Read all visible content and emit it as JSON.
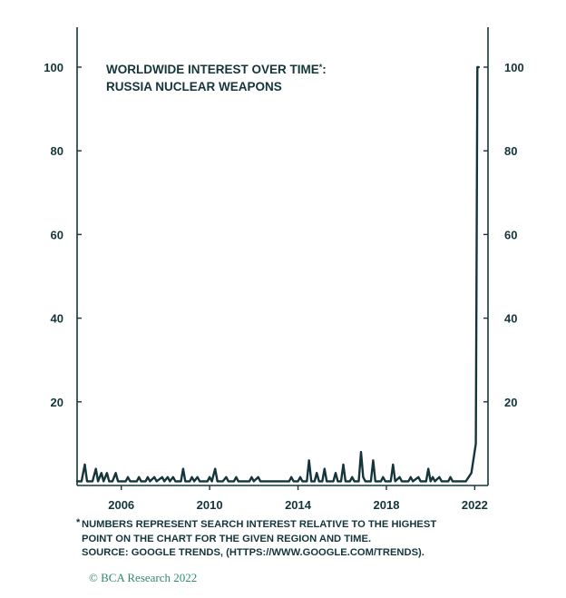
{
  "chart_data": {
    "type": "line",
    "title_lines": [
      "WORLDWIDE INTEREST OVER TIME",
      "RUSSIA NUCLEAR WEAPONS"
    ],
    "title_marker": "*:",
    "title_line1_suffix": ":",
    "xlabel": "",
    "ylabel": "",
    "xlim": [
      2004.0,
      2022.6
    ],
    "ylim": [
      0,
      110
    ],
    "x_ticks": [
      2006,
      2010,
      2014,
      2018,
      2022
    ],
    "x_tick_labels": [
      "2006",
      "2010",
      "2014",
      "2018",
      "2022"
    ],
    "y_ticks": [
      20,
      40,
      60,
      80,
      100
    ],
    "y_tick_labels": [
      "20",
      "40",
      "60",
      "80",
      "100"
    ],
    "grid": false,
    "series": [
      {
        "points": [
          [
            2004.0,
            1
          ],
          [
            2004.2,
            1
          ],
          [
            2004.35,
            5
          ],
          [
            2004.45,
            1
          ],
          [
            2004.7,
            1
          ],
          [
            2004.85,
            4
          ],
          [
            2004.95,
            1
          ],
          [
            2005.1,
            3
          ],
          [
            2005.2,
            1
          ],
          [
            2005.35,
            3
          ],
          [
            2005.45,
            1
          ],
          [
            2005.6,
            1
          ],
          [
            2005.75,
            3
          ],
          [
            2005.85,
            1
          ],
          [
            2006.2,
            1
          ],
          [
            2006.3,
            2
          ],
          [
            2006.4,
            1
          ],
          [
            2006.7,
            1
          ],
          [
            2006.8,
            2
          ],
          [
            2006.9,
            1
          ],
          [
            2007.1,
            1
          ],
          [
            2007.2,
            2
          ],
          [
            2007.3,
            1
          ],
          [
            2007.5,
            2
          ],
          [
            2007.6,
            1
          ],
          [
            2007.85,
            2
          ],
          [
            2007.95,
            1
          ],
          [
            2008.1,
            2
          ],
          [
            2008.2,
            1
          ],
          [
            2008.35,
            2
          ],
          [
            2008.45,
            1
          ],
          [
            2008.7,
            1
          ],
          [
            2008.8,
            4
          ],
          [
            2008.9,
            1
          ],
          [
            2009.1,
            1
          ],
          [
            2009.2,
            2
          ],
          [
            2009.3,
            1
          ],
          [
            2009.45,
            2
          ],
          [
            2009.55,
            1
          ],
          [
            2009.9,
            1
          ],
          [
            2010.0,
            2
          ],
          [
            2010.1,
            1
          ],
          [
            2010.25,
            4
          ],
          [
            2010.35,
            1
          ],
          [
            2010.6,
            1
          ],
          [
            2010.75,
            2
          ],
          [
            2010.85,
            1
          ],
          [
            2011.1,
            1
          ],
          [
            2011.2,
            2
          ],
          [
            2011.3,
            1
          ],
          [
            2011.8,
            1
          ],
          [
            2011.9,
            2
          ],
          [
            2012.0,
            1
          ],
          [
            2012.2,
            2
          ],
          [
            2012.3,
            1
          ],
          [
            2013.6,
            1
          ],
          [
            2013.7,
            2
          ],
          [
            2013.8,
            1
          ],
          [
            2014.0,
            1
          ],
          [
            2014.1,
            2
          ],
          [
            2014.2,
            1
          ],
          [
            2014.4,
            1
          ],
          [
            2014.5,
            6
          ],
          [
            2014.6,
            1
          ],
          [
            2014.75,
            1
          ],
          [
            2014.85,
            3
          ],
          [
            2014.95,
            1
          ],
          [
            2015.1,
            1
          ],
          [
            2015.2,
            4
          ],
          [
            2015.3,
            1
          ],
          [
            2015.6,
            1
          ],
          [
            2015.7,
            3
          ],
          [
            2015.8,
            1
          ],
          [
            2015.95,
            1
          ],
          [
            2016.05,
            5
          ],
          [
            2016.15,
            1
          ],
          [
            2016.35,
            1
          ],
          [
            2016.45,
            2
          ],
          [
            2016.55,
            1
          ],
          [
            2016.75,
            1
          ],
          [
            2016.85,
            8
          ],
          [
            2016.95,
            2
          ],
          [
            2017.05,
            1
          ],
          [
            2017.3,
            1
          ],
          [
            2017.4,
            6
          ],
          [
            2017.5,
            1
          ],
          [
            2017.75,
            1
          ],
          [
            2017.85,
            2
          ],
          [
            2017.95,
            1
          ],
          [
            2018.2,
            1
          ],
          [
            2018.3,
            5
          ],
          [
            2018.4,
            1
          ],
          [
            2018.6,
            2
          ],
          [
            2018.7,
            1
          ],
          [
            2019.0,
            1
          ],
          [
            2019.1,
            2
          ],
          [
            2019.2,
            1
          ],
          [
            2019.45,
            2
          ],
          [
            2019.55,
            1
          ],
          [
            2019.8,
            1
          ],
          [
            2019.9,
            4
          ],
          [
            2020.0,
            1
          ],
          [
            2020.1,
            2
          ],
          [
            2020.2,
            1
          ],
          [
            2020.4,
            2
          ],
          [
            2020.5,
            1
          ],
          [
            2020.8,
            1
          ],
          [
            2020.9,
            2
          ],
          [
            2021.0,
            1
          ],
          [
            2021.6,
            1
          ],
          [
            2021.85,
            3
          ],
          [
            2022.05,
            10
          ],
          [
            2022.12,
            100
          ],
          [
            2022.18,
            100
          ]
        ]
      }
    ]
  },
  "footnote_marker": "*",
  "footnote_lines": [
    "NUMBERS REPRESENT SEARCH INTEREST RELATIVE TO THE HIGHEST",
    "POINT ON THE CHART FOR THE GIVEN REGION AND TIME.",
    "SOURCE: GOOGLE TRENDS, (HTTPS://WWW.GOOGLE.COM/TRENDS)."
  ],
  "brand": "© BCA Research 2022",
  "colors": {
    "line": "#14363a",
    "brand": "#2e8a6e"
  }
}
